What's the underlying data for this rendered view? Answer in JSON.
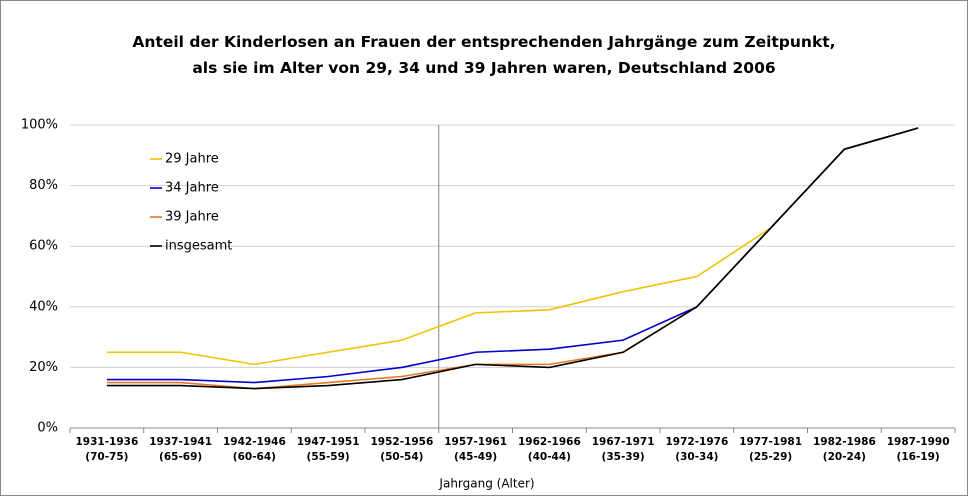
{
  "chart_data": {
    "type": "line",
    "title": "Anteil der Kinderlosen an Frauen der entsprechenden Jahrgänge zum Zeitpunkt,\nals sie im Alter von 29, 34 und 39 Jahren waren, Deutschland 2006",
    "x_label": "Jahrgang (Alter)",
    "categories": [
      "1931-1936\n(70-75)",
      "1937-1941\n(65-69)",
      "1942-1946\n(60-64)",
      "1947-1951\n(55-59)",
      "1952-1956\n(50-54)",
      "1957-1961\n(45-49)",
      "1962-1966\n(40-44)",
      "1967-1971\n(35-39)",
      "1972-1976\n(30-34)",
      "1977-1981\n(25-29)",
      "1982-1986\n(20-24)",
      "1987-1990\n(16-19)"
    ],
    "series": [
      {
        "name": "29 Jahre",
        "color": "#f2c200",
        "values": [
          25,
          25,
          21,
          25,
          29,
          38,
          39,
          45,
          50,
          66,
          92,
          99
        ]
      },
      {
        "name": "34 Jahre",
        "color": "#0000cc",
        "values": [
          16,
          16,
          15,
          17,
          20,
          25,
          26,
          29,
          40,
          66,
          92,
          99
        ]
      },
      {
        "name": "39 Jahre",
        "color": "#e87722",
        "values": [
          15,
          15,
          13,
          15,
          17,
          21,
          21,
          25,
          40,
          66,
          92,
          99
        ]
      },
      {
        "name": "insgesamt",
        "color": "#000000",
        "values": [
          14,
          14,
          13,
          14,
          16,
          21,
          20,
          25,
          40,
          66,
          92,
          99
        ]
      }
    ],
    "ylim": [
      0,
      100
    ],
    "yticks": [
      {
        "value": 0,
        "label": "0%"
      },
      {
        "value": 20,
        "label": "20%"
      },
      {
        "value": 40,
        "label": "40%"
      },
      {
        "value": 60,
        "label": "60%"
      },
      {
        "value": 80,
        "label": "80%"
      },
      {
        "value": 100,
        "label": "100%"
      }
    ],
    "grid": true,
    "legend": "upper left"
  }
}
